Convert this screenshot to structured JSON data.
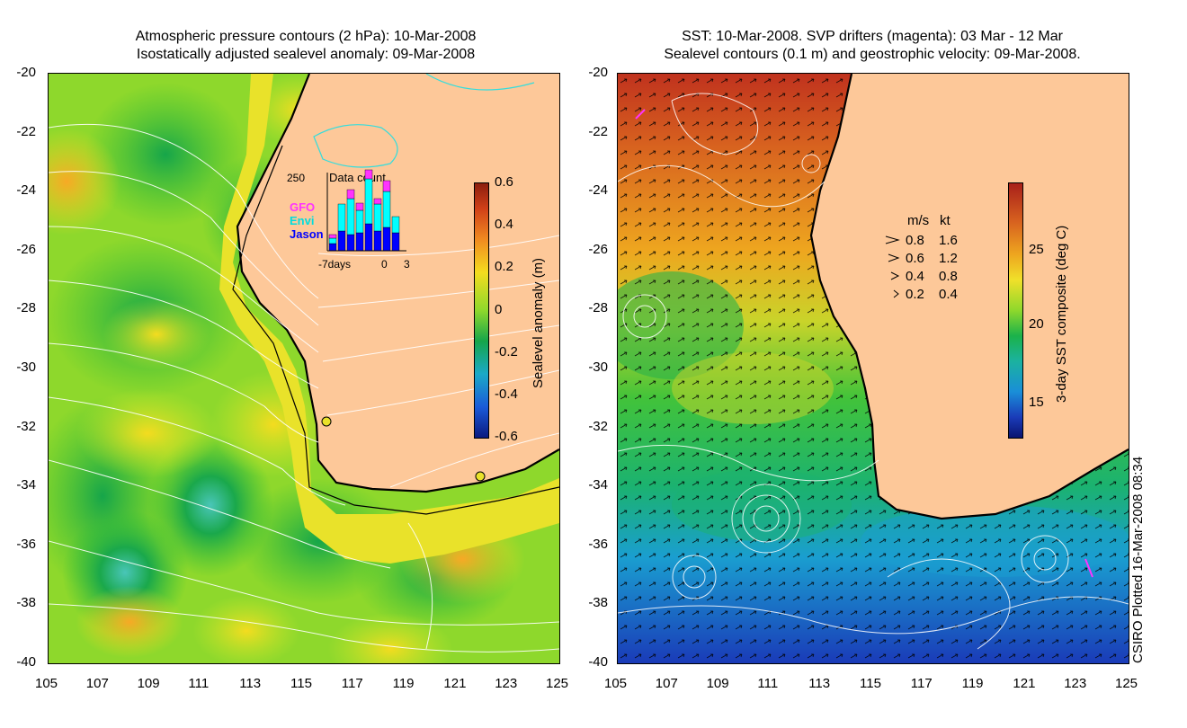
{
  "left_panel": {
    "title_line1": "Atmospheric pressure contours (2 hPa): 10-Mar-2008",
    "title_line2": "Isostatically adjusted sealevel anomaly: 09-Mar-2008",
    "colorbar": {
      "title": "Sealevel anomaly (m)",
      "ticks": [
        "0.6",
        "0.4",
        "0.2",
        "0",
        "-0.2",
        "-0.4",
        "-0.6"
      ]
    },
    "inset": {
      "count_label": "250",
      "title": "Data count",
      "legend": [
        "GFO",
        "Envi",
        "Jason"
      ],
      "xlabel_left": "-7days",
      "xlabel_mid": "0",
      "xlabel_right": "3",
      "legend_colors": [
        "#ff33ff",
        "#00ffff",
        "#0000ff"
      ]
    }
  },
  "right_panel": {
    "title_line1": "SST: 10-Mar-2008. SVP drifters (magenta): 03 Mar - 12 Mar",
    "title_line2": "Sealevel contours (0.1 m) and geostrophic velocity: 09-Mar-2008.",
    "colorbar": {
      "title": "3-day SST composite (deg C)",
      "ticks": [
        "25",
        "20",
        "15"
      ]
    },
    "velocity_key": {
      "header_ms": "m/s",
      "header_kt": "kt",
      "rows": [
        {
          "ms": "0.8",
          "kt": "1.6"
        },
        {
          "ms": "0.6",
          "kt": "1.2"
        },
        {
          "ms": "0.4",
          "kt": "0.8"
        },
        {
          "ms": "0.2",
          "kt": "0.4"
        }
      ]
    }
  },
  "axes": {
    "y_ticks": [
      "-20",
      "-22",
      "-24",
      "-26",
      "-28",
      "-30",
      "-32",
      "-34",
      "-36",
      "-38",
      "-40"
    ],
    "x_ticks": [
      "105",
      "107",
      "109",
      "111",
      "113",
      "115",
      "117",
      "119",
      "121",
      "123",
      "125"
    ]
  },
  "credit": "CSIRO Plotted 16-Mar-2008 08:34",
  "colors": {
    "land": "#fdc899",
    "coast": "#000000",
    "contour": "#ffffff"
  }
}
